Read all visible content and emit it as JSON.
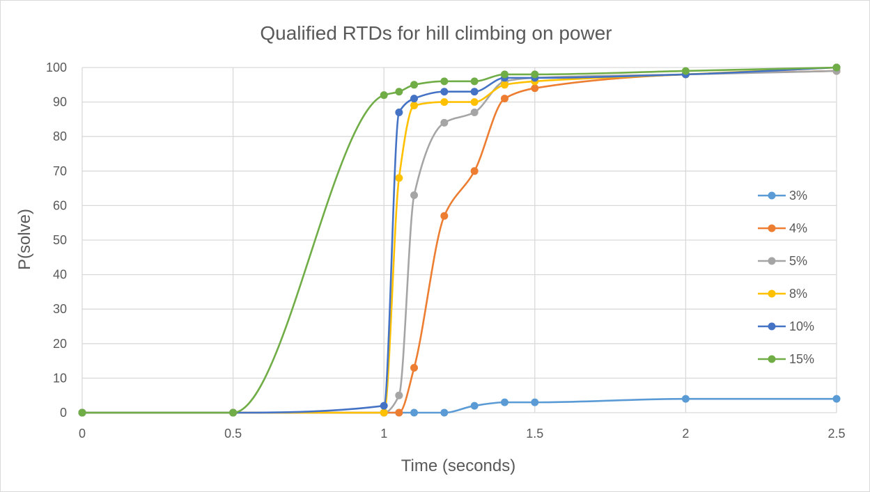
{
  "chart_data": {
    "type": "line",
    "title": "Qualified RTDs for hill climbing on power",
    "xlabel": "Time (seconds)",
    "ylabel": "P(solve)",
    "xlim": [
      0,
      2.5
    ],
    "ylim": [
      0,
      100
    ],
    "xticks": [
      "0",
      "0.5",
      "1",
      "1.5",
      "2",
      "2.5"
    ],
    "yticks": [
      "0",
      "10",
      "20",
      "30",
      "40",
      "50",
      "60",
      "70",
      "80",
      "90",
      "100"
    ],
    "grid": true,
    "legend_position": "right",
    "series": [
      {
        "name": "3%",
        "color": "#5B9BD5",
        "points": [
          [
            0,
            0
          ],
          [
            0.5,
            0
          ],
          [
            1,
            0
          ],
          [
            1.05,
            0
          ],
          [
            1.1,
            0
          ],
          [
            1.2,
            0
          ],
          [
            1.3,
            2
          ],
          [
            1.4,
            3
          ],
          [
            1.5,
            3
          ],
          [
            2,
            4
          ],
          [
            2.5,
            4
          ]
        ]
      },
      {
        "name": "4%",
        "color": "#ED7D31",
        "points": [
          [
            0,
            0
          ],
          [
            0.5,
            0
          ],
          [
            1,
            0
          ],
          [
            1.05,
            0
          ],
          [
            1.1,
            13
          ],
          [
            1.2,
            57
          ],
          [
            1.3,
            70
          ],
          [
            1.4,
            91
          ],
          [
            1.5,
            94
          ],
          [
            2,
            98
          ],
          [
            2.5,
            99
          ]
        ]
      },
      {
        "name": "5%",
        "color": "#A5A5A5",
        "points": [
          [
            0,
            0
          ],
          [
            0.5,
            0
          ],
          [
            1,
            0
          ],
          [
            1.05,
            5
          ],
          [
            1.1,
            63
          ],
          [
            1.2,
            84
          ],
          [
            1.3,
            87
          ],
          [
            1.4,
            96
          ],
          [
            1.5,
            97
          ],
          [
            2,
            98
          ],
          [
            2.5,
            99
          ]
        ]
      },
      {
        "name": "8%",
        "color": "#FFC000",
        "points": [
          [
            0,
            0
          ],
          [
            0.5,
            0
          ],
          [
            1,
            0
          ],
          [
            1.05,
            68
          ],
          [
            1.1,
            89
          ],
          [
            1.2,
            90
          ],
          [
            1.3,
            90
          ],
          [
            1.4,
            95
          ],
          [
            1.5,
            96
          ],
          [
            2,
            98
          ],
          [
            2.5,
            100
          ]
        ]
      },
      {
        "name": "10%",
        "color": "#4472C4",
        "points": [
          [
            0,
            0
          ],
          [
            0.5,
            0
          ],
          [
            1,
            2
          ],
          [
            1.05,
            87
          ],
          [
            1.1,
            91
          ],
          [
            1.2,
            93
          ],
          [
            1.3,
            93
          ],
          [
            1.4,
            97
          ],
          [
            1.5,
            97
          ],
          [
            2,
            98
          ],
          [
            2.5,
            100
          ]
        ]
      },
      {
        "name": "15%",
        "color": "#70AD47",
        "points": [
          [
            0,
            0
          ],
          [
            0.5,
            0
          ],
          [
            1,
            92
          ],
          [
            1.05,
            93
          ],
          [
            1.1,
            95
          ],
          [
            1.2,
            96
          ],
          [
            1.3,
            96
          ],
          [
            1.4,
            98
          ],
          [
            1.5,
            98
          ],
          [
            2,
            99
          ],
          [
            2.5,
            100
          ]
        ]
      }
    ]
  }
}
